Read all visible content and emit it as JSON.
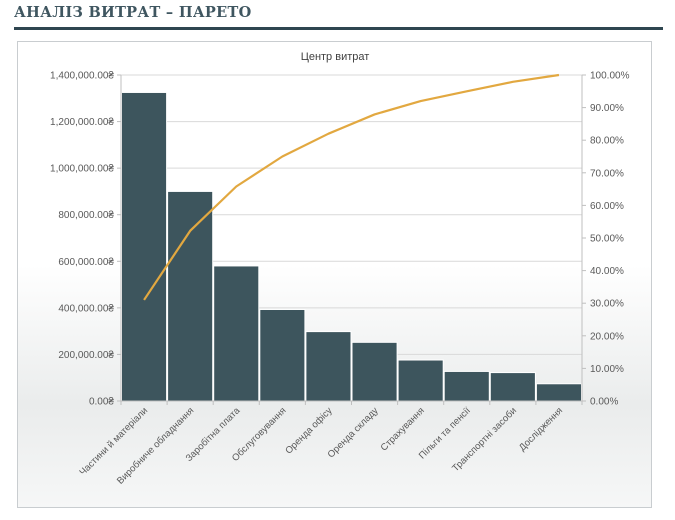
{
  "header": {
    "title": "АНАЛІЗ ВИТРАТ – ПАРЕТО"
  },
  "chart_data": {
    "type": "bar",
    "title": "Центр витрат",
    "categories": [
      "Частини й матеріали",
      "Виробниче обладнання",
      "Заробітна плата",
      "Обслуговування",
      "Оренда офісу",
      "Оренда складу",
      "Страхування",
      "Пільги та пенсії",
      "Транспортні засоби",
      "Дослідження"
    ],
    "series": [
      {
        "type": "bar",
        "values": [
          1325000,
          900000,
          580000,
          393000,
          298000,
          252000,
          176000,
          127000,
          122000,
          74000
        ],
        "color": "#3d555d"
      },
      {
        "type": "line",
        "values": [
          31.0,
          52.2,
          65.8,
          75.0,
          82.0,
          87.9,
          92.0,
          95.0,
          97.9,
          100.0
        ],
        "color": "#e2a840"
      }
    ],
    "y_left": {
      "min": 0,
      "max": 1400000,
      "step": 200000,
      "tick_labels": [
        "0.00₴",
        "200,000.00₴",
        "400,000.00₴",
        "600,000.00₴",
        "800,000.00₴",
        "1,000,000.00₴",
        "1,200,000.00₴",
        "1,400,000.00₴"
      ]
    },
    "y_right": {
      "min": 0,
      "max": 100,
      "step": 10,
      "tick_labels": [
        "0.00%",
        "10.00%",
        "20.00%",
        "30.00%",
        "40.00%",
        "50.00%",
        "60.00%",
        "70.00%",
        "80.00%",
        "90.00%",
        "100.00%"
      ]
    },
    "grid": true,
    "legend": "none"
  }
}
